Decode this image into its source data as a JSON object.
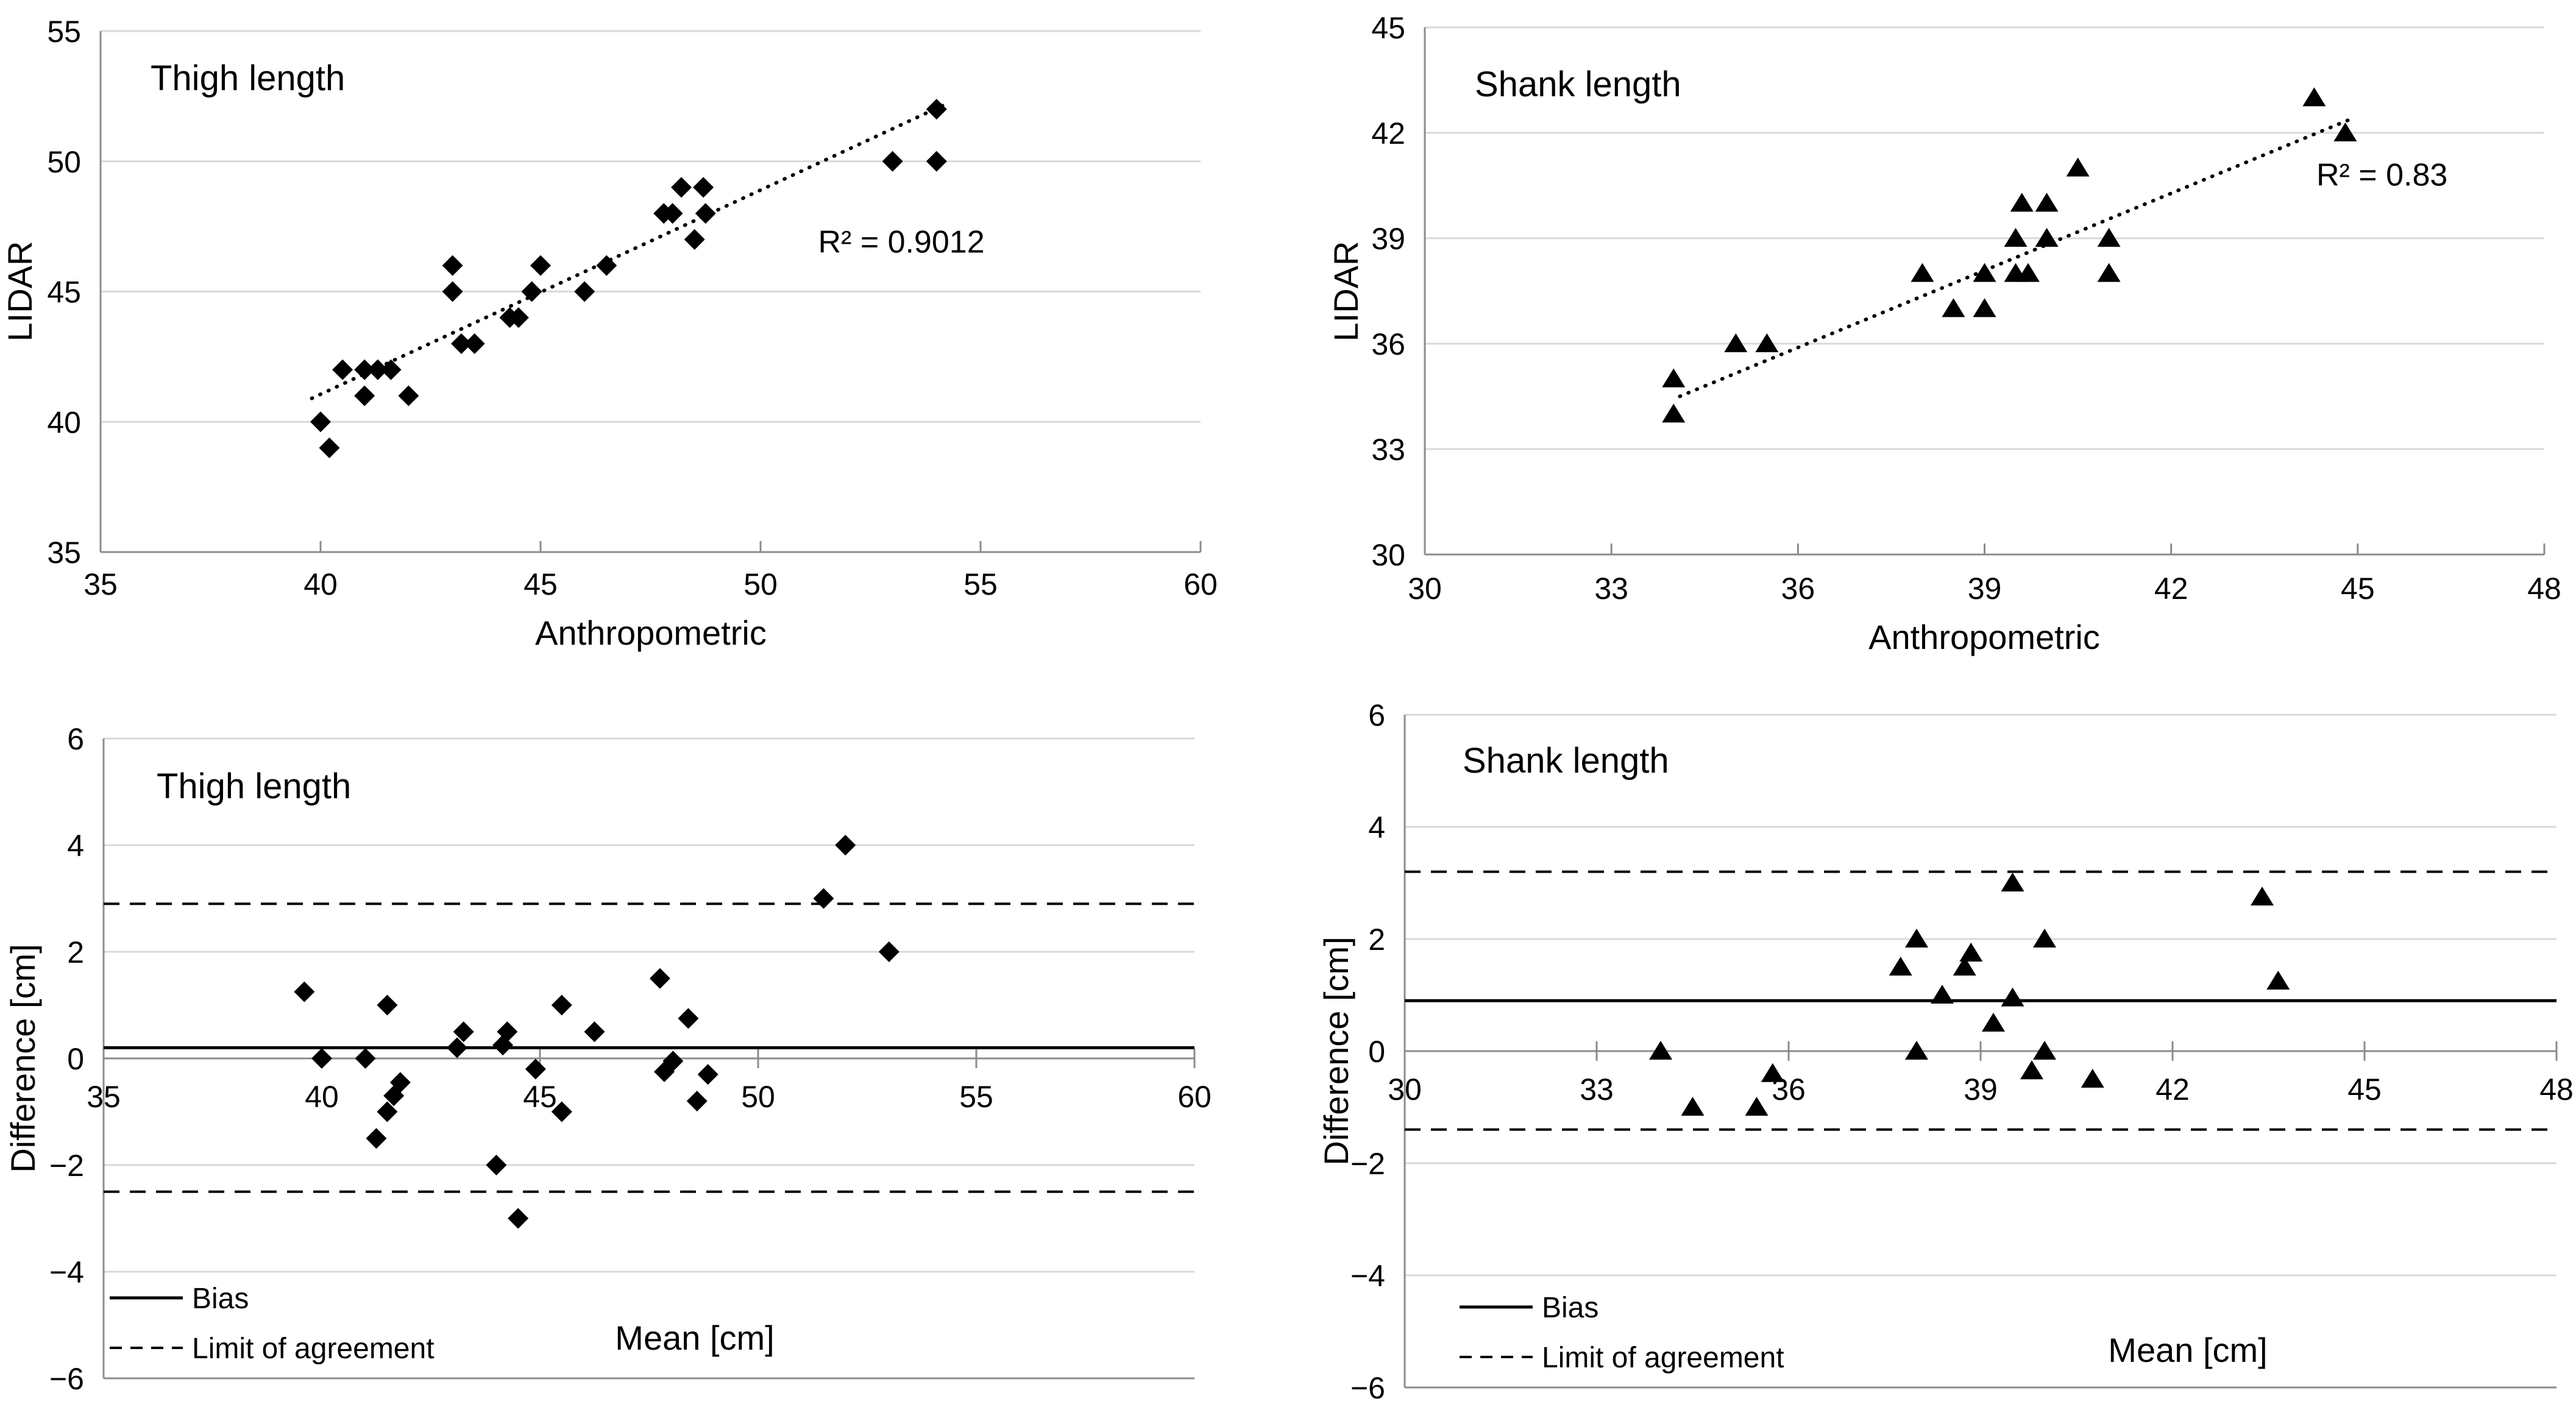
{
  "figure": {
    "background": "#ffffff",
    "colors": {
      "marker": "#000000",
      "gridline": "#d9d9d9",
      "axis": "#8c8c8c",
      "text": "#000000",
      "reference_line": "#000000"
    }
  },
  "chart_data": [
    {
      "id": "thigh-scatter",
      "type": "scatter",
      "title": "Thigh length",
      "marker": "diamond",
      "xlabel": "Anthropometric",
      "ylabel": "LIDAR",
      "xlim": [
        35,
        60
      ],
      "ylim": [
        35,
        55
      ],
      "x_ticks": [
        35,
        40,
        45,
        50,
        55,
        60
      ],
      "y_ticks": [
        35,
        40,
        45,
        50,
        55
      ],
      "grid": "horizontal",
      "legend_position": "none",
      "points": [
        [
          40,
          40
        ],
        [
          40.2,
          39
        ],
        [
          40.5,
          42
        ],
        [
          41,
          41
        ],
        [
          41,
          42
        ],
        [
          41.3,
          42
        ],
        [
          41.6,
          42
        ],
        [
          42,
          41
        ],
        [
          43,
          45
        ],
        [
          43,
          46
        ],
        [
          43.2,
          43
        ],
        [
          43.5,
          43
        ],
        [
          44.3,
          44
        ],
        [
          44.5,
          44
        ],
        [
          44.8,
          45
        ],
        [
          45,
          46
        ],
        [
          46,
          45
        ],
        [
          46.5,
          46
        ],
        [
          47.8,
          48
        ],
        [
          48,
          48
        ],
        [
          48.2,
          49
        ],
        [
          48.7,
          49
        ],
        [
          48.75,
          48
        ],
        [
          48.5,
          47
        ],
        [
          53,
          50
        ],
        [
          54,
          50
        ],
        [
          54,
          52
        ]
      ],
      "trendline": {
        "style": "dotted",
        "x1": 39.8,
        "y1": 40.9,
        "x2": 54.15,
        "y2": 52.15
      },
      "annotation": {
        "text": "R² = 0.9012",
        "fx": 0.728,
        "fy": 0.425
      }
    },
    {
      "id": "shank-scatter",
      "type": "scatter",
      "title": "Shank length",
      "marker": "triangle",
      "xlabel": "Anthropometric",
      "ylabel": "LIDAR",
      "xlim": [
        30,
        48
      ],
      "ylim": [
        30,
        45
      ],
      "x_ticks": [
        30,
        33,
        36,
        39,
        42,
        45,
        48
      ],
      "y_ticks": [
        30,
        33,
        36,
        39,
        42,
        45
      ],
      "grid": "horizontal",
      "legend_position": "none",
      "points": [
        [
          34,
          34
        ],
        [
          34,
          35
        ],
        [
          35,
          36
        ],
        [
          35.5,
          36
        ],
        [
          38,
          38
        ],
        [
          38.5,
          37
        ],
        [
          39,
          37
        ],
        [
          39,
          38
        ],
        [
          39.5,
          38
        ],
        [
          39.7,
          38
        ],
        [
          39.5,
          39
        ],
        [
          40,
          39
        ],
        [
          41,
          39
        ],
        [
          39.6,
          40
        ],
        [
          40,
          40
        ],
        [
          40.5,
          41
        ],
        [
          41,
          38
        ],
        [
          44.3,
          43
        ],
        [
          44.8,
          42
        ]
      ],
      "trendline": {
        "style": "dotted",
        "x1": 34.1,
        "y1": 34.5,
        "x2": 44.9,
        "y2": 42.4
      },
      "annotation": {
        "text": "R² = 0.83",
        "fx": 0.855,
        "fy": 0.3
      }
    },
    {
      "id": "thigh-bland-altman",
      "type": "scatter",
      "title": "Thigh length",
      "marker": "diamond",
      "xlabel": "Mean [cm]",
      "ylabel": "Difference [cm]",
      "xlim": [
        35,
        60
      ],
      "ylim": [
        -6,
        6
      ],
      "x_ticks": [
        35,
        40,
        45,
        50,
        55,
        60
      ],
      "y_ticks": [
        6,
        4,
        2,
        0,
        -2,
        -4,
        -6
      ],
      "grid": "horizontal",
      "axis_at_zero": true,
      "bias": 0.2,
      "loa_upper": 2.9,
      "loa_lower": -2.5,
      "legend": {
        "bias_label": "Bias",
        "loa_label": "Limit of agreement"
      },
      "points": [
        [
          39.6,
          1.25
        ],
        [
          40,
          0
        ],
        [
          41,
          0
        ],
        [
          41.25,
          -1.5
        ],
        [
          41.5,
          -1.0
        ],
        [
          41.65,
          -0.7
        ],
        [
          41.8,
          -0.45
        ],
        [
          41.5,
          1.0
        ],
        [
          43.1,
          0.2
        ],
        [
          43.25,
          0.5
        ],
        [
          44,
          -2.0
        ],
        [
          44.15,
          0.25
        ],
        [
          44.25,
          0.5
        ],
        [
          44.5,
          -3.0
        ],
        [
          44.9,
          -0.2
        ],
        [
          45.5,
          1.0
        ],
        [
          45.5,
          -1.0
        ],
        [
          46.25,
          0.5
        ],
        [
          47.75,
          1.5
        ],
        [
          47.85,
          -0.25
        ],
        [
          48.05,
          -0.05
        ],
        [
          48.4,
          0.75
        ],
        [
          48.6,
          -0.8
        ],
        [
          48.85,
          -0.3
        ],
        [
          51.5,
          3.0
        ],
        [
          52,
          4.0
        ],
        [
          53,
          2.0
        ]
      ]
    },
    {
      "id": "shank-bland-altman",
      "type": "scatter",
      "title": "Shank length",
      "marker": "triangle",
      "xlabel": "Mean [cm]",
      "ylabel": "Difference [cm]",
      "xlim": [
        30,
        48
      ],
      "ylim": [
        -6,
        6
      ],
      "x_ticks": [
        30,
        33,
        36,
        39,
        42,
        45,
        48
      ],
      "y_ticks": [
        6,
        4,
        2,
        0,
        -2,
        -4,
        -6
      ],
      "grid": "horizontal",
      "axis_at_zero": true,
      "bias": 0.9,
      "loa_upper": 3.2,
      "loa_lower": -1.4,
      "legend": {
        "bias_label": "Bias",
        "loa_label": "Limit of agreement"
      },
      "points": [
        [
          34,
          0
        ],
        [
          34.5,
          -1.0
        ],
        [
          35.5,
          -1.0
        ],
        [
          35.75,
          -0.4
        ],
        [
          37.75,
          1.5
        ],
        [
          38,
          2.0
        ],
        [
          38,
          0
        ],
        [
          38.4,
          1.0
        ],
        [
          38.75,
          1.5
        ],
        [
          38.85,
          1.75
        ],
        [
          39.2,
          0.5
        ],
        [
          39.5,
          0.95
        ],
        [
          39.5,
          3.0
        ],
        [
          39.8,
          -0.35
        ],
        [
          40,
          2.0
        ],
        [
          40,
          0
        ],
        [
          40.75,
          -0.5
        ],
        [
          43.4,
          2.75
        ],
        [
          43.65,
          1.25
        ]
      ]
    }
  ]
}
